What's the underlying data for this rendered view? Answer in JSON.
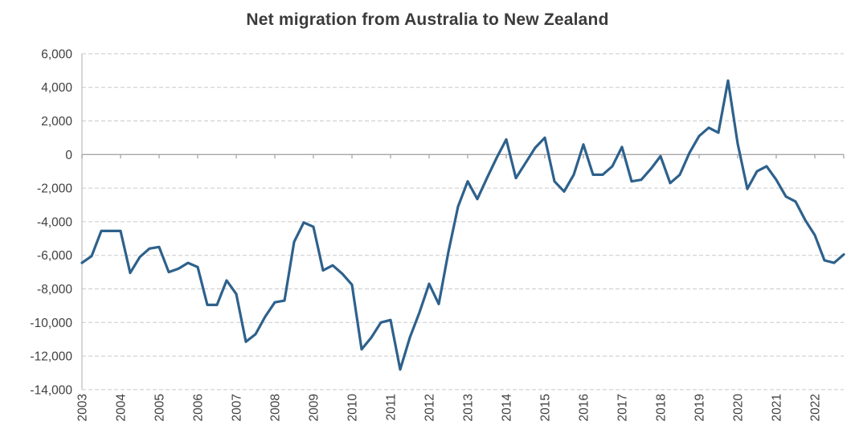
{
  "chart_data": {
    "type": "line",
    "title": "Net migration from Australia to New Zealand",
    "x_axis": {
      "years": [
        "2003",
        "2004",
        "2005",
        "2006",
        "2007",
        "2008",
        "2009",
        "2010",
        "2011",
        "2012",
        "2013",
        "2014",
        "2015",
        "2016",
        "2017",
        "2018",
        "2019",
        "2020",
        "2021",
        "2022"
      ],
      "points_per_year": 4,
      "label_rotation_deg": -90
    },
    "y_axis": {
      "min": -14000,
      "max": 6000,
      "tick_step": 2000,
      "tick_labels": [
        "6,000",
        "4,000",
        "2,000",
        "0",
        "-2,000",
        "-4,000",
        "-6,000",
        "-8,000",
        "-10,000",
        "-12,000",
        "-14,000"
      ]
    },
    "values_quarterly": [
      -6450,
      -6050,
      -4550,
      -4550,
      -4550,
      -7050,
      -6100,
      -5600,
      -5500,
      -7000,
      -6800,
      -6450,
      -6700,
      -8950,
      -8950,
      -7500,
      -8300,
      -11150,
      -10700,
      -9650,
      -8800,
      -8700,
      -5200,
      -4050,
      -4300,
      -6900,
      -6600,
      -7100,
      -7750,
      -11600,
      -10900,
      -10000,
      -9850,
      -12800,
      -10900,
      -9400,
      -7700,
      -8900,
      -5800,
      -3100,
      -1600,
      -2650,
      -1400,
      -200,
      900,
      -1400,
      -500,
      400,
      1000,
      -1600,
      -2200,
      -1200,
      600,
      -1200,
      -1200,
      -700,
      450,
      -1600,
      -1500,
      -850,
      -100,
      -1700,
      -1200,
      100,
      1100,
      1600,
      1300,
      4400,
      650,
      -2050,
      -1000,
      -700,
      -1500,
      -2500,
      -2800,
      -3900,
      -4800,
      -6300,
      -6450,
      -5950
    ],
    "legend": "none",
    "grid": "horizontal-dashed",
    "colors": {
      "line": "#2e618c",
      "title_text": "#3b3b3b",
      "axis_text": "#404040",
      "gridline": "#c9c9c9",
      "zero_line": "#a6a6a6",
      "axis_line": "#c0c0c0",
      "background": "#ffffff"
    }
  }
}
